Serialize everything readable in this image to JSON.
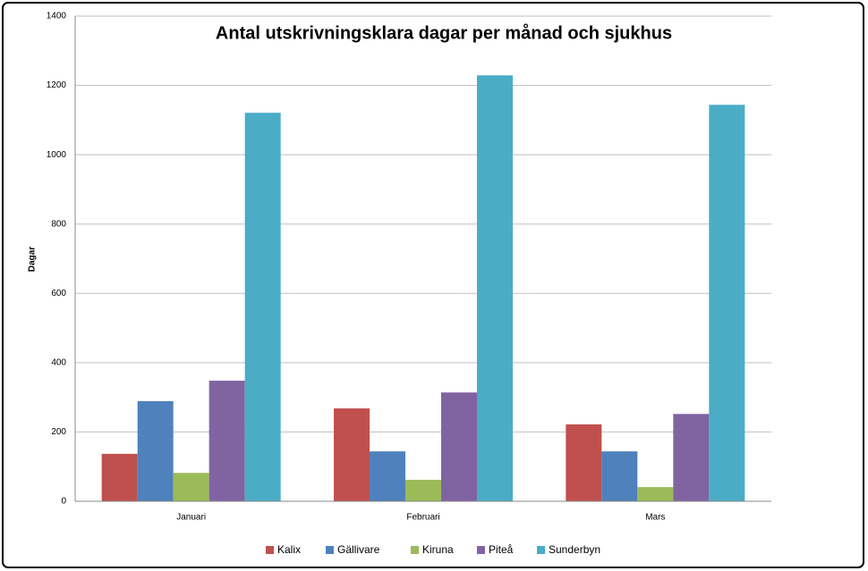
{
  "chart_data": {
    "type": "bar",
    "title": "Antal utskrivningsklara dagar per månad och sjukhus",
    "y_label": "Dagar",
    "categories": [
      "Januari",
      "Februari",
      "Mars"
    ],
    "series": [
      {
        "name": "Kalix",
        "color": "#c0504d",
        "values": [
          137,
          268,
          222
        ]
      },
      {
        "name": "Gällivare",
        "color": "#4f81bd",
        "values": [
          289,
          144,
          144
        ]
      },
      {
        "name": "Kiruna",
        "color": "#9bbb59",
        "values": [
          82,
          62,
          41
        ]
      },
      {
        "name": "Piteå",
        "color": "#8064a2",
        "values": [
          348,
          314,
          252
        ]
      },
      {
        "name": "Sunderbyn",
        "color": "#4bacc6",
        "values": [
          1121,
          1229,
          1144
        ]
      }
    ],
    "ylim": [
      0,
      1400
    ],
    "yticks": [
      0,
      200,
      400,
      600,
      800,
      1000,
      1200,
      1400
    ],
    "grid": true,
    "legend": "bottom"
  }
}
